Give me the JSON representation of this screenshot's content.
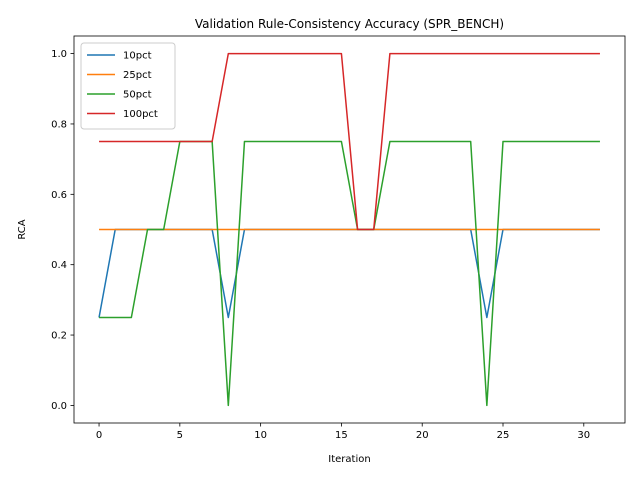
{
  "chart_data": {
    "type": "line",
    "title": "Validation Rule-Consistency Accuracy (SPR_BENCH)",
    "xlabel": "Iteration",
    "ylabel": "RCA",
    "xlim": [
      -1.55,
      32.55
    ],
    "ylim": [
      -0.05,
      1.05
    ],
    "xticks": [
      0,
      5,
      10,
      15,
      20,
      25,
      30
    ],
    "yticks": [
      0.0,
      0.2,
      0.4,
      0.6,
      0.8,
      1.0
    ],
    "grid": false,
    "legend_position": "top-left",
    "x": [
      0,
      1,
      2,
      3,
      4,
      5,
      6,
      7,
      8,
      9,
      10,
      11,
      12,
      13,
      14,
      15,
      16,
      17,
      18,
      19,
      20,
      21,
      22,
      23,
      24,
      25,
      26,
      27,
      28,
      29,
      30,
      31
    ],
    "series": [
      {
        "name": "10pct",
        "color": "#1f77b4",
        "values": [
          0.25,
          0.5,
          0.5,
          0.5,
          0.5,
          0.5,
          0.5,
          0.5,
          0.25,
          0.5,
          0.5,
          0.5,
          0.5,
          0.5,
          0.5,
          0.5,
          0.5,
          0.5,
          0.5,
          0.5,
          0.5,
          0.5,
          0.5,
          0.5,
          0.25,
          0.5,
          0.5,
          0.5,
          0.5,
          0.5,
          0.5,
          0.5
        ]
      },
      {
        "name": "25pct",
        "color": "#ff7f0e",
        "values": [
          0.5,
          0.5,
          0.5,
          0.5,
          0.5,
          0.5,
          0.5,
          0.5,
          0.5,
          0.5,
          0.5,
          0.5,
          0.5,
          0.5,
          0.5,
          0.5,
          0.5,
          0.5,
          0.5,
          0.5,
          0.5,
          0.5,
          0.5,
          0.5,
          0.5,
          0.5,
          0.5,
          0.5,
          0.5,
          0.5,
          0.5,
          0.5
        ]
      },
      {
        "name": "50pct",
        "color": "#2ca02c",
        "values": [
          0.25,
          0.25,
          0.25,
          0.5,
          0.5,
          0.75,
          0.75,
          0.75,
          0.0,
          0.75,
          0.75,
          0.75,
          0.75,
          0.75,
          0.75,
          0.75,
          0.5,
          0.5,
          0.75,
          0.75,
          0.75,
          0.75,
          0.75,
          0.75,
          0.0,
          0.75,
          0.75,
          0.75,
          0.75,
          0.75,
          0.75,
          0.75
        ]
      },
      {
        "name": "100pct",
        "color": "#d62728",
        "values": [
          0.75,
          0.75,
          0.75,
          0.75,
          0.75,
          0.75,
          0.75,
          0.75,
          1.0,
          1.0,
          1.0,
          1.0,
          1.0,
          1.0,
          1.0,
          1.0,
          0.5,
          0.5,
          1.0,
          1.0,
          1.0,
          1.0,
          1.0,
          1.0,
          1.0,
          1.0,
          1.0,
          1.0,
          1.0,
          1.0,
          1.0,
          1.0
        ]
      }
    ]
  }
}
